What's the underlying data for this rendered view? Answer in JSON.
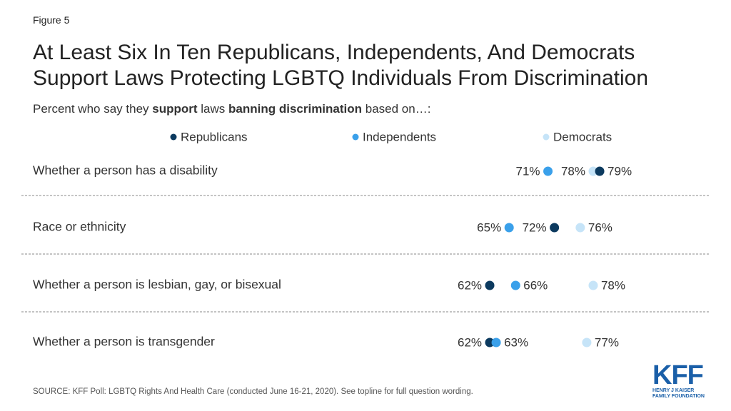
{
  "figure_label": "Figure 5",
  "chart_data": {
    "type": "dot",
    "title": "At Least Six In Ten Republicans, Independents, And Democrats\nSupport Laws Protecting LGBTQ Individuals From Discrimination",
    "subtitle": [
      {
        "text": "Percent who say they ",
        "bold": false
      },
      {
        "text": "support",
        "bold": true
      },
      {
        "text": " laws ",
        "bold": false
      },
      {
        "text": "banning discrimination",
        "bold": true
      },
      {
        "text": " based on…:",
        "bold": false
      }
    ],
    "categories": [
      "Whether a person has a disability",
      "Race or ethnicity",
      "Whether a person is lesbian, gay, or bisexual",
      "Whether a person is transgender"
    ],
    "series": [
      {
        "name": "Republicans",
        "color": "#0c3a5f",
        "values": [
          79,
          72,
          62,
          62
        ],
        "value_labels": [
          "79%",
          "72%",
          "62%",
          "62%"
        ]
      },
      {
        "name": "Independents",
        "color": "#3aa0ea",
        "values": [
          71,
          65,
          66,
          63
        ],
        "value_labels": [
          "71%",
          "65%",
          "66%",
          "63%"
        ]
      },
      {
        "name": "Democrats",
        "color": "#c6e4f8",
        "values": [
          78,
          76,
          78,
          77
        ],
        "value_labels": [
          "78%",
          "76%",
          "78%",
          "77%"
        ]
      }
    ],
    "source": "SOURCE: KFF Poll: LGBTQ Rights And Health Care (conducted June 16-21, 2020). See topline for full question wording."
  },
  "logo": {
    "name": "KFF",
    "tagline": "HENRY J KAISER\nFAMILY FOUNDATION"
  }
}
